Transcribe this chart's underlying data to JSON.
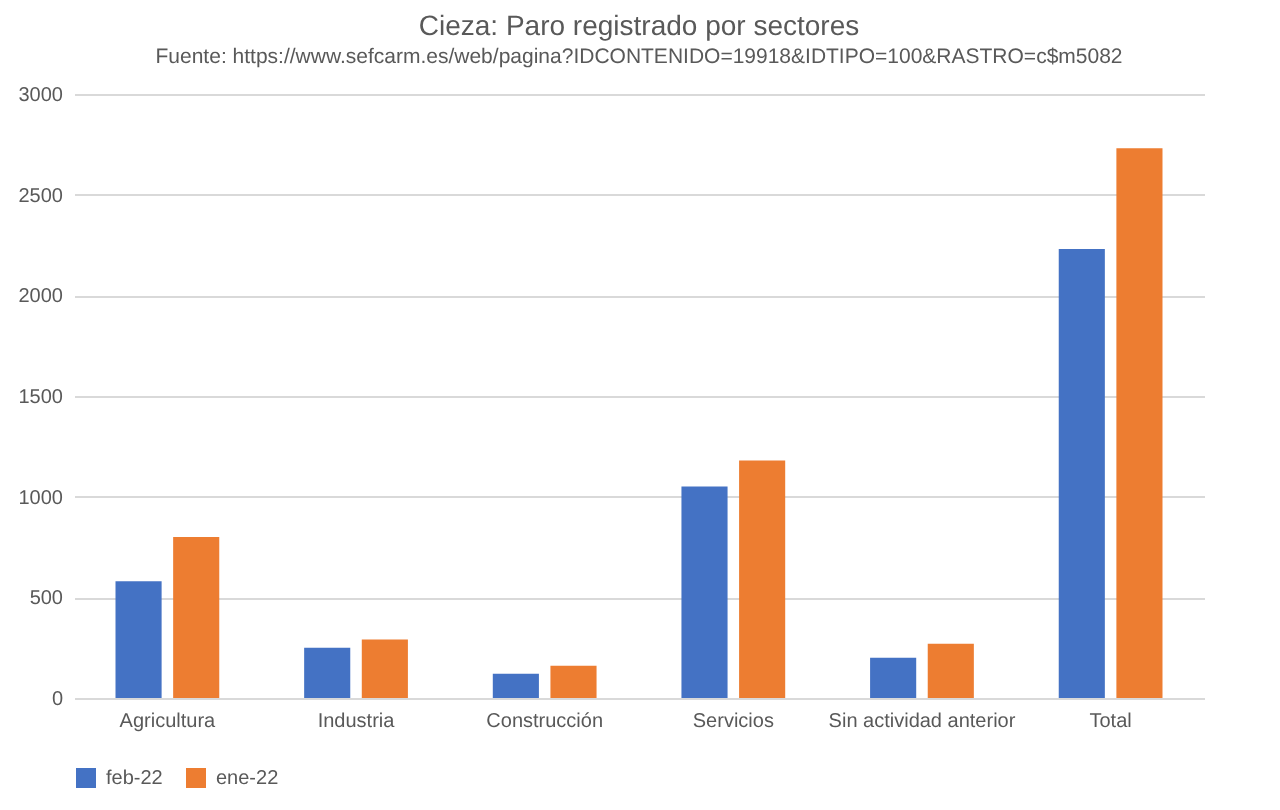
{
  "chart_data": {
    "type": "bar",
    "title": "Cieza: Paro registrado por sectores",
    "subtitle": "Fuente: https://www.sefcarm.es/web/pagina?IDCONTENIDO=19918&IDTIPO=100&RASTRO=c$m5082",
    "categories": [
      "Agricultura",
      "Industria",
      "Construcción",
      "Servicios",
      "Sin actividad anterior",
      "Total"
    ],
    "series": [
      {
        "name": "feb-22",
        "color": "#4472c4",
        "values": [
          580,
          250,
          120,
          1050,
          200,
          2230
        ]
      },
      {
        "name": "ene-22",
        "color": "#ed7d31",
        "values": [
          800,
          290,
          160,
          1180,
          270,
          2730
        ]
      }
    ],
    "ylim": [
      0,
      3000
    ],
    "yticks": [
      0,
      500,
      1000,
      1500,
      2000,
      2500,
      3000
    ],
    "grid": "y",
    "legend": "bottom"
  }
}
